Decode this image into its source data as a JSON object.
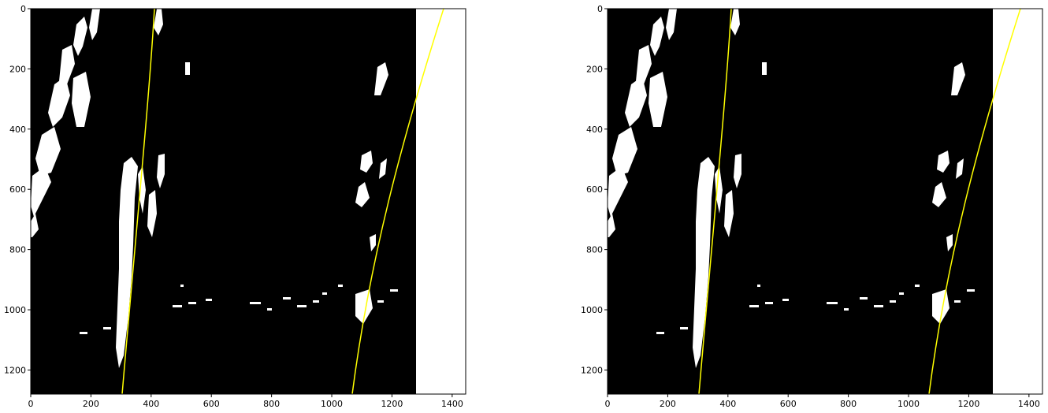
{
  "figure": {
    "panels": [
      {
        "name": "left",
        "x_ticks": [
          "0",
          "200",
          "400",
          "600",
          "800",
          "1000",
          "1200",
          "1400"
        ],
        "y_ticks": [
          "0",
          "200",
          "400",
          "600",
          "800",
          "1000",
          "1200"
        ]
      },
      {
        "name": "right",
        "x_ticks": [
          "0",
          "200",
          "400",
          "600",
          "800",
          "1000",
          "1200",
          "1400"
        ],
        "y_ticks": [
          "0",
          "200",
          "400",
          "600",
          "800",
          "1000",
          "1200"
        ]
      }
    ],
    "colors": {
      "background": "#000000",
      "lane_pixels": "#ffffff",
      "fit_line": "#ffff00",
      "page": "#ffffff"
    }
  },
  "chart_data": {
    "type": "image",
    "xlim": [
      0,
      1440
    ],
    "ylim": [
      1280,
      0
    ],
    "fit_lines": [
      {
        "name": "",
        "points": [
          [
            410,
            0
          ],
          [
            390,
            200
          ],
          [
            370,
            400
          ],
          [
            350,
            600
          ],
          [
            335,
            800
          ],
          [
            320,
            1000
          ],
          [
            305,
            1280
          ]
        ]
      },
      {
        "name": "",
        "points": [
          [
            1370,
            0
          ],
          [
            1280,
            250
          ],
          [
            1210,
            450
          ],
          [
            1160,
            650
          ],
          [
            1125,
            850
          ],
          [
            1100,
            1000
          ],
          [
            1070,
            1280
          ]
        ]
      }
    ]
  }
}
